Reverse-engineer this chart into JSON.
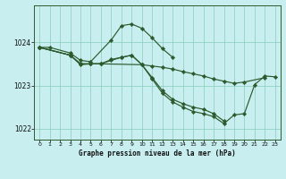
{
  "background_color": "#c8eef0",
  "plot_bg_color": "#c8eef0",
  "line_color": "#2d5a2d",
  "grid_color": "#88ccbb",
  "title": "Graphe pression niveau de la mer (hPa)",
  "xlim": [
    -0.5,
    23.5
  ],
  "ylim": [
    1021.75,
    1024.85
  ],
  "yticks": [
    1022,
    1023,
    1024
  ],
  "xticks": [
    0,
    1,
    2,
    3,
    4,
    5,
    6,
    7,
    8,
    9,
    10,
    11,
    12,
    13,
    14,
    15,
    16,
    17,
    18,
    19,
    20,
    21,
    22,
    23
  ],
  "s1_x": [
    0,
    1,
    3,
    4,
    5,
    7,
    8,
    9,
    10,
    11,
    12,
    13
  ],
  "s1_y": [
    1023.88,
    1023.88,
    1023.75,
    1023.58,
    1023.55,
    1024.05,
    1024.38,
    1024.42,
    1024.32,
    1024.1,
    1023.85,
    1023.65
  ],
  "s2_x": [
    0,
    3,
    4,
    5,
    6,
    10,
    11,
    12,
    13,
    14,
    15,
    16,
    17,
    18,
    19,
    20,
    22
  ],
  "s2_y": [
    1023.88,
    1023.7,
    1023.48,
    1023.5,
    1023.5,
    1023.48,
    1023.45,
    1023.42,
    1023.38,
    1023.32,
    1023.27,
    1023.22,
    1023.15,
    1023.1,
    1023.05,
    1023.08,
    1023.18
  ],
  "s3_x": [
    0,
    3,
    4,
    5,
    6,
    7,
    8,
    9,
    10,
    11,
    12,
    13,
    14,
    15,
    16,
    17,
    18
  ],
  "s3_y": [
    1023.88,
    1023.7,
    1023.5,
    1023.5,
    1023.5,
    1023.6,
    1023.65,
    1023.7,
    1023.48,
    1023.18,
    1022.88,
    1022.68,
    1022.58,
    1022.5,
    1022.45,
    1022.35,
    1022.18
  ],
  "s4_x": [
    0,
    3,
    4,
    5,
    6,
    7,
    8,
    9,
    10,
    11,
    12,
    13,
    14,
    15,
    16,
    17,
    18,
    19,
    20,
    21,
    22,
    23
  ],
  "s4_y": [
    1023.88,
    1023.7,
    1023.5,
    1023.5,
    1023.5,
    1023.58,
    1023.65,
    1023.7,
    1023.48,
    1023.15,
    1022.82,
    1022.62,
    1022.5,
    1022.4,
    1022.35,
    1022.28,
    1022.12,
    1022.32,
    1022.35,
    1023.02,
    1023.22,
    1023.2
  ]
}
